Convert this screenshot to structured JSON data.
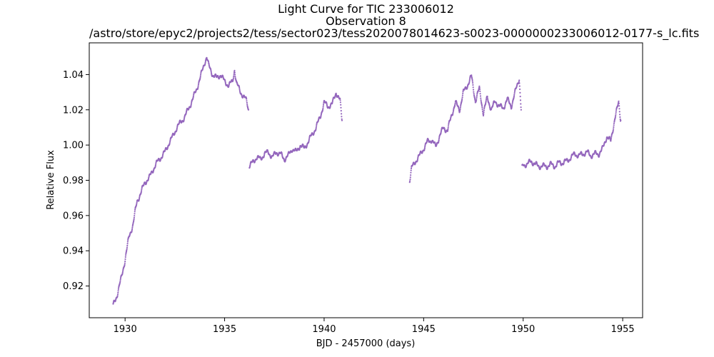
{
  "chart_data": {
    "type": "scatter",
    "title": "Light Curve for TIC 233006012",
    "subtitle": "Observation 8",
    "filepath": "/astro/store/epyc2/projects2/tess/sector023/tess2020078014623-s0023-0000000233006012-0177-s_lc.fits",
    "xlabel": "BJD - 2457000 (days)",
    "ylabel": "Relative Flux",
    "xlim": [
      1928.2,
      1956.0
    ],
    "ylim": [
      0.902,
      1.058
    ],
    "xticks": [
      1930,
      1935,
      1940,
      1945,
      1950,
      1955
    ],
    "yticks": [
      0.92,
      0.94,
      0.96,
      0.98,
      1.0,
      1.02,
      1.04
    ],
    "ytick_labels": [
      "0.92",
      "0.94",
      "0.96",
      "0.98",
      "1.00",
      "1.02",
      "1.04"
    ],
    "grid": false,
    "color": "#9467bd",
    "series": [
      {
        "segment": 1,
        "x": [
          1929.4,
          1929.6,
          1929.8,
          1930.0,
          1930.2,
          1930.4,
          1930.6,
          1930.8,
          1931.0,
          1931.2,
          1931.4,
          1931.6,
          1931.8,
          1932.0,
          1932.2,
          1932.4,
          1932.6,
          1932.8,
          1933.0,
          1933.2,
          1933.4,
          1933.6,
          1933.8,
          1934.0,
          1934.1,
          1934.2,
          1934.4,
          1934.6,
          1934.8,
          1935.0,
          1935.2,
          1935.4,
          1935.5,
          1935.6,
          1935.8,
          1936.0,
          1936.1,
          1936.2
        ],
        "y": [
          0.909,
          0.915,
          0.924,
          0.935,
          0.948,
          0.955,
          0.968,
          0.973,
          0.979,
          0.981,
          0.986,
          0.99,
          0.993,
          0.996,
          1.001,
          1.005,
          1.01,
          1.013,
          1.016,
          1.021,
          1.026,
          1.032,
          1.039,
          1.047,
          1.05,
          1.045,
          1.04,
          1.038,
          1.04,
          1.036,
          1.034,
          1.036,
          1.043,
          1.035,
          1.03,
          1.027,
          1.025,
          1.02
        ]
      },
      {
        "segment": 2,
        "x": [
          1936.25,
          1936.4,
          1936.6,
          1936.8,
          1937.0,
          1937.2,
          1937.4,
          1937.6,
          1937.8,
          1938.0,
          1938.2,
          1938.4,
          1938.6,
          1938.8,
          1939.0,
          1939.2,
          1939.4,
          1939.6,
          1939.8,
          1940.0,
          1940.2,
          1940.4,
          1940.6,
          1940.8,
          1940.9
        ],
        "y": [
          0.988,
          0.99,
          0.993,
          0.992,
          0.995,
          0.996,
          0.993,
          0.996,
          0.995,
          0.992,
          0.994,
          0.998,
          0.996,
          1.0,
          0.998,
          1.002,
          1.006,
          1.01,
          1.016,
          1.024,
          1.022,
          1.023,
          1.03,
          1.025,
          1.014
        ]
      },
      {
        "segment": 3,
        "x": [
          1944.3,
          1944.4,
          1944.6,
          1944.8,
          1945.0,
          1945.2,
          1945.4,
          1945.6,
          1945.8,
          1946.0,
          1946.2,
          1946.4,
          1946.6,
          1946.8,
          1947.0,
          1947.2,
          1947.4,
          1947.6,
          1947.8,
          1948.0,
          1948.2,
          1948.4,
          1948.6,
          1948.8,
          1949.0,
          1949.2,
          1949.4,
          1949.6,
          1949.8,
          1949.9
        ],
        "y": [
          0.98,
          0.987,
          0.991,
          0.994,
          0.998,
          1.002,
          1.003,
          0.999,
          1.005,
          1.01,
          1.008,
          1.017,
          1.024,
          1.02,
          1.03,
          1.034,
          1.039,
          1.025,
          1.032,
          1.018,
          1.027,
          1.02,
          1.025,
          1.022,
          1.021,
          1.026,
          1.022,
          1.03,
          1.038,
          1.02
        ]
      },
      {
        "segment": 4,
        "x": [
          1949.95,
          1950.0,
          1950.2,
          1950.4,
          1950.6,
          1950.8,
          1951.0,
          1951.2,
          1951.4,
          1951.6,
          1951.8,
          1952.0,
          1952.2,
          1952.4,
          1952.6,
          1952.8,
          1953.0,
          1953.2,
          1953.4,
          1953.6,
          1953.8,
          1954.0,
          1954.2,
          1954.4,
          1954.6,
          1954.8,
          1954.9
        ],
        "y": [
          0.987,
          0.989,
          0.989,
          0.991,
          0.989,
          0.988,
          0.988,
          0.988,
          0.989,
          0.988,
          0.99,
          0.99,
          0.991,
          0.993,
          0.995,
          0.994,
          0.995,
          0.996,
          0.994,
          0.995,
          0.995,
          0.998,
          1.005,
          1.002,
          1.015,
          1.024,
          1.014
        ]
      }
    ]
  }
}
